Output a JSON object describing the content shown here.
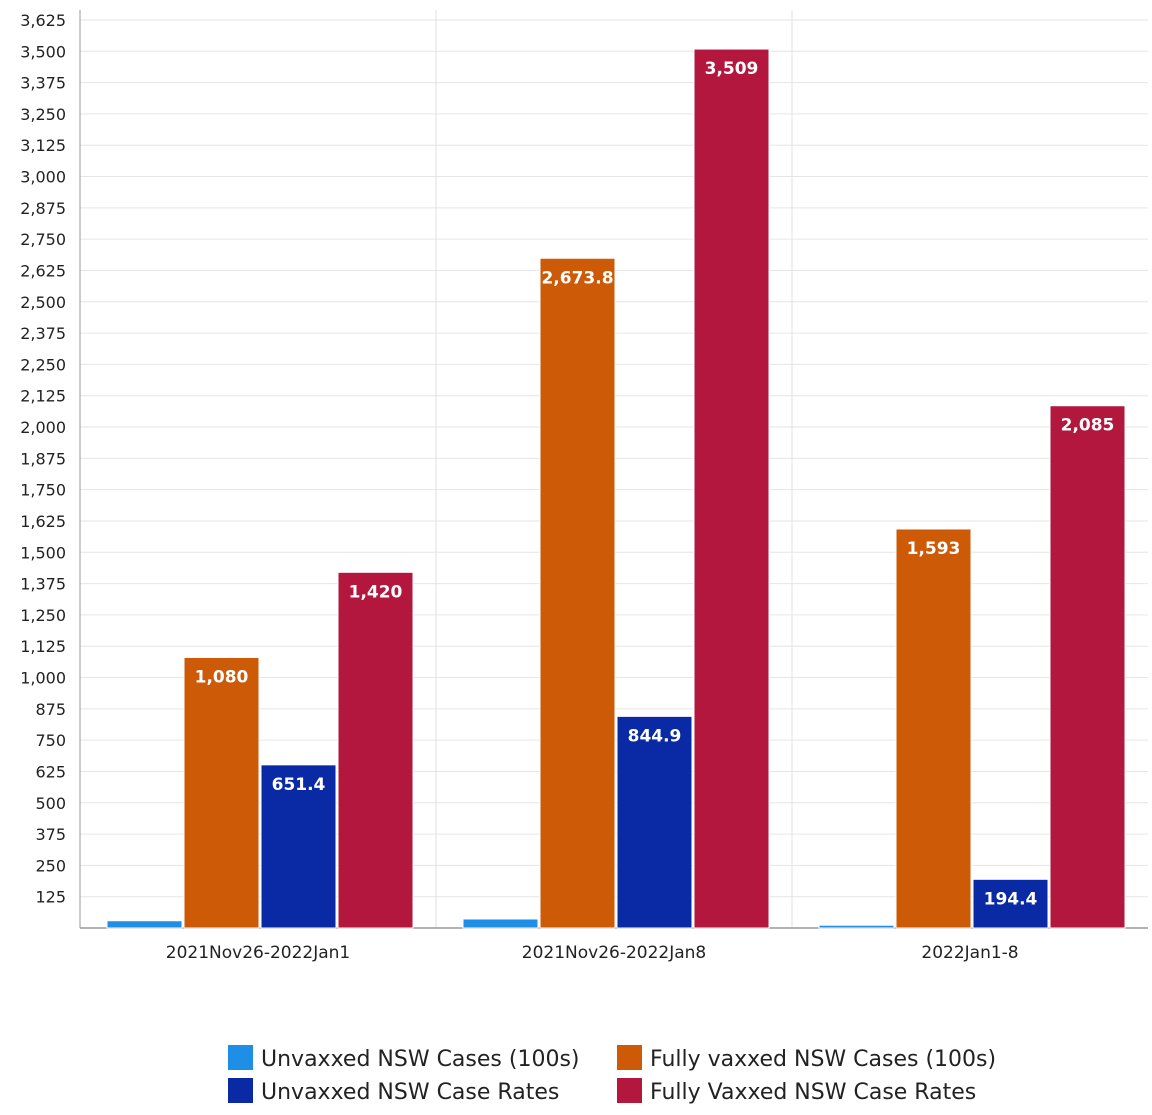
{
  "chart_data": {
    "type": "bar",
    "title": "",
    "xlabel": "",
    "ylabel": "",
    "categories": [
      "2021Nov26-2022Jan1",
      "2021Nov26-2022Jan8",
      "2022Jan1-8"
    ],
    "ylim": [
      0,
      3625
    ],
    "yticks": [
      125,
      250,
      375,
      500,
      625,
      750,
      875,
      1000,
      1125,
      1250,
      1375,
      1500,
      1625,
      1750,
      1875,
      2000,
      2125,
      2250,
      2375,
      2500,
      2625,
      2750,
      2875,
      3000,
      3125,
      3250,
      3375,
      3500,
      3625
    ],
    "ytick_labels": [
      "125",
      "250",
      "375",
      "500",
      "625",
      "750",
      "875",
      "1,000",
      "1,125",
      "1,250",
      "1,375",
      "1,500",
      "1,625",
      "1,750",
      "1,875",
      "2,000",
      "2,125",
      "2,250",
      "2,375",
      "2,500",
      "2,625",
      "2,750",
      "2,875",
      "3,000",
      "3,125",
      "3,250",
      "3,375",
      "3,500",
      "3,625"
    ],
    "grid": true,
    "legend_position": "bottom",
    "series": [
      {
        "name": "Unvaxxed NSW Cases (100s)",
        "color": "#1f8ee6",
        "values": [
          29,
          36,
          11
        ],
        "labels": [
          "",
          "",
          ""
        ]
      },
      {
        "name": "Fully vaxxed NSW Cases (100s)",
        "color": "#cc5a06",
        "values": [
          1080,
          2673.8,
          1593
        ],
        "labels": [
          "1,080",
          "2,673.8",
          "1,593"
        ]
      },
      {
        "name": "Unvaxxed NSW Case Rates",
        "color": "#0a2aa5",
        "values": [
          651.4,
          844.9,
          194.4
        ],
        "labels": [
          "651.4",
          "844.9",
          "194.4"
        ]
      },
      {
        "name": "Fully Vaxxed NSW Case Rates",
        "color": "#b3173e",
        "values": [
          1420,
          3509,
          2085
        ],
        "labels": [
          "1,420",
          "3,509",
          "2,085"
        ]
      }
    ]
  }
}
